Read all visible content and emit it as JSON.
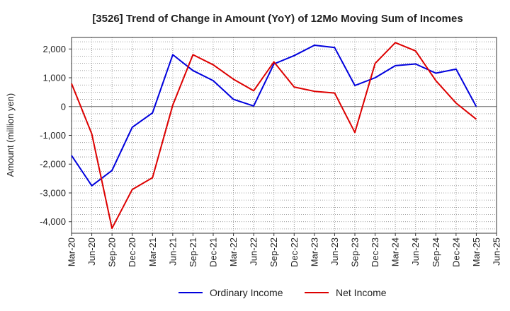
{
  "chart_data": {
    "type": "line",
    "title": "[3526]  Trend of Change in Amount (YoY) of 12Mo Moving Sum of Incomes",
    "ylabel": "Amount (million yen)",
    "xlabel": "",
    "ylim": [
      -4400,
      2400
    ],
    "yticks": [
      2000,
      1000,
      0,
      -1000,
      -2000,
      -3000,
      -4000
    ],
    "ytick_labels": [
      "2,000",
      "1,000",
      "0",
      "-1,000",
      "-2,000",
      "-3,000",
      "-4,000"
    ],
    "categories": [
      "Mar-20",
      "Jun-20",
      "Sep-20",
      "Dec-20",
      "Mar-21",
      "Jun-21",
      "Sep-21",
      "Dec-21",
      "Mar-22",
      "Jun-22",
      "Sep-22",
      "Dec-22",
      "Mar-23",
      "Jun-23",
      "Sep-23",
      "Dec-23",
      "Mar-24",
      "Jun-24",
      "Sep-24",
      "Dec-24",
      "Mar-25",
      "Jun-25"
    ],
    "grid": true,
    "legend_position": "bottom-center",
    "series": [
      {
        "name": "Ordinary Income",
        "color": "#0000dd",
        "values": [
          -1700,
          -2750,
          -2220,
          -720,
          -220,
          1800,
          1250,
          900,
          250,
          20,
          1480,
          1770,
          2130,
          2050,
          730,
          1000,
          1420,
          1480,
          1160,
          1300,
          0,
          null
        ]
      },
      {
        "name": "Net Income",
        "color": "#dd0000",
        "values": [
          800,
          -950,
          -4230,
          -2880,
          -2470,
          50,
          1800,
          1450,
          950,
          550,
          1550,
          680,
          530,
          470,
          -900,
          1500,
          2220,
          1930,
          900,
          120,
          -440,
          null
        ]
      }
    ]
  }
}
